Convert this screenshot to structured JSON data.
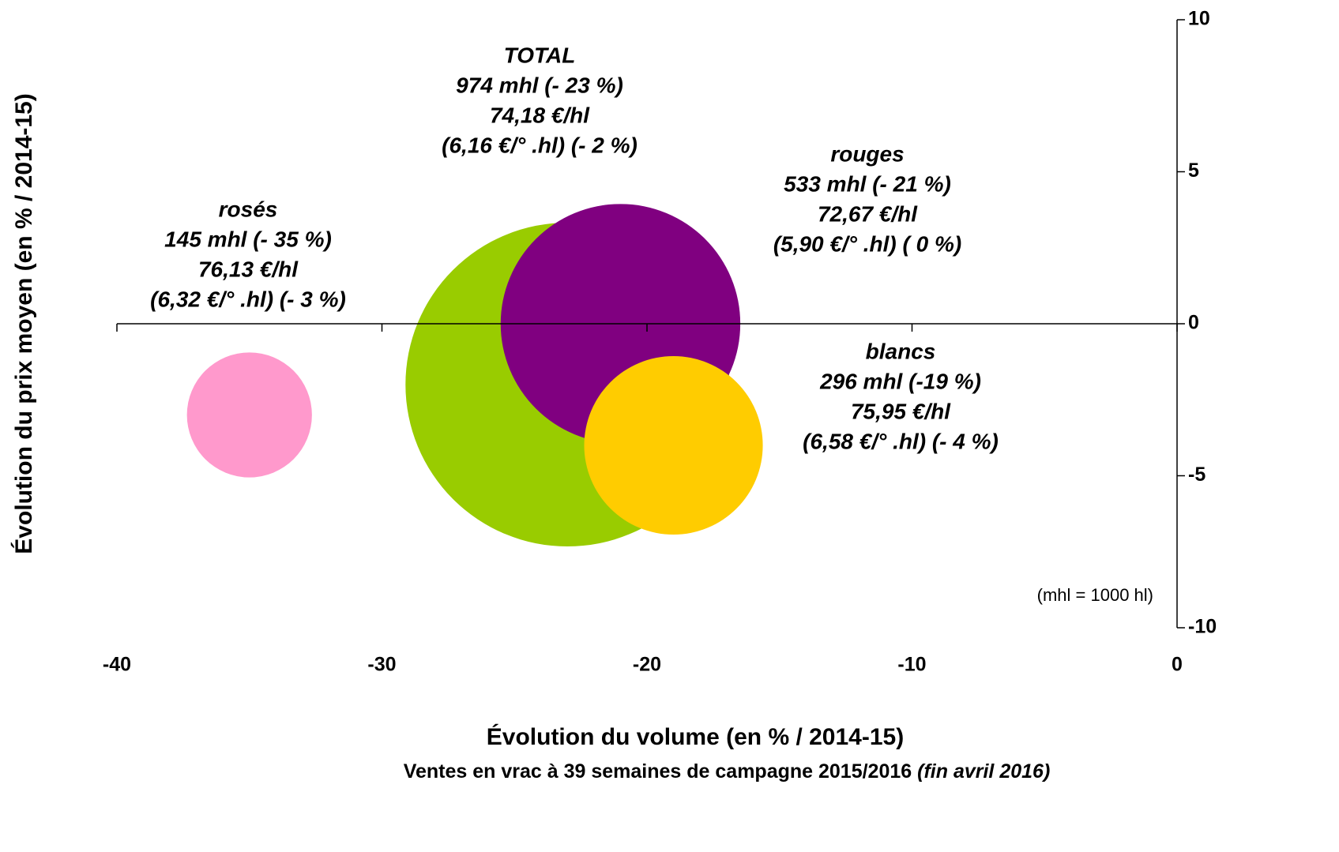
{
  "chart_data": {
    "type": "bubble",
    "xlabel": "Évolution du volume (en % / 2014-15)",
    "ylabel": "Évolution du prix moyen (en % / 2014-15)",
    "subtitle": "Ventes en vrac à 39 semaines de campagne 2015/2016",
    "subtitle_note": "(fin avril 2016)",
    "note": "(mhl = 1000 hl)",
    "xlim": [
      -40,
      0
    ],
    "ylim": [
      -10,
      10
    ],
    "xticks": [
      -40,
      -30,
      -20,
      -10,
      0
    ],
    "yticks": [
      10,
      5,
      0,
      -5,
      -10
    ],
    "series": [
      {
        "name": "TOTAL",
        "color": "#99cc00",
        "x": [
          -23
        ],
        "values": [
          -2
        ],
        "sizes": [
          974
        ],
        "lines": [
          "974 mhl (- 23 %)",
          "74,18 €/hl",
          "(6,16 €/° .hl) (- 2 %)"
        ]
      },
      {
        "name": "rouges",
        "color": "#800080",
        "x": [
          -21
        ],
        "values": [
          0
        ],
        "sizes": [
          533
        ],
        "lines": [
          "533 mhl (- 21 %)",
          "72,67 €/hl",
          "(5,90 €/° .hl) ( 0 %)"
        ]
      },
      {
        "name": "blancs",
        "color": "#ffcc00",
        "x": [
          -19
        ],
        "values": [
          -4
        ],
        "sizes": [
          296
        ],
        "lines": [
          "296 mhl (-19 %)",
          "75,95 €/hl",
          "(6,58 €/° .hl) (- 4 %)"
        ]
      },
      {
        "name": "rosés",
        "color": "#ff99cc",
        "x": [
          -35
        ],
        "values": [
          -3
        ],
        "sizes": [
          145
        ],
        "lines": [
          "145 mhl (- 35 %)",
          "76,13 €/hl",
          "(6,32 €/° .hl) (- 3 %)"
        ]
      }
    ]
  }
}
